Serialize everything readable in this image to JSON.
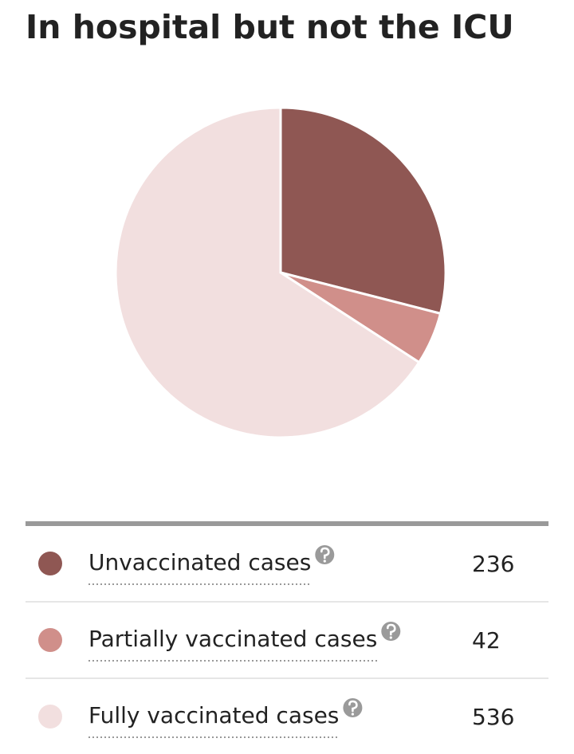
{
  "chart_data": {
    "type": "pie",
    "title": "In hospital but not the ICU",
    "categories": [
      "Unvaccinated cases",
      "Partially vaccinated cases",
      "Fully vaccinated cases"
    ],
    "values": [
      236,
      42,
      536
    ],
    "colors": [
      "#8f5753",
      "#d08f8a",
      "#f2dfdf"
    ]
  }
}
